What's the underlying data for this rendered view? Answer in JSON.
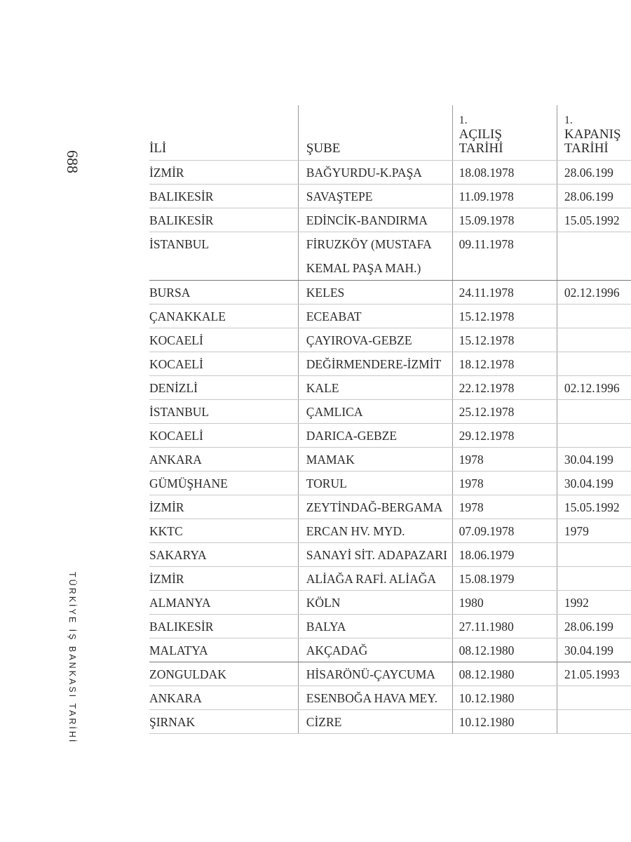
{
  "page_number": "688",
  "running_head": "TÜRKİYE İŞ BANKASI TARİHİ",
  "table": {
    "headers": [
      {
        "num": "",
        "label": "İLİ"
      },
      {
        "num": "",
        "label": "ŞUBE"
      },
      {
        "num": "1.",
        "label": "AÇILIŞ TARİHİ"
      },
      {
        "num": "1.",
        "label": "KAPANIŞ TARİHİ"
      }
    ],
    "rows": [
      [
        "İZMİR",
        "BAĞYURDU-K.PAŞA",
        "18.08.1978",
        "28.06.199"
      ],
      [
        "BALIKESİR",
        "SAVAŞTEPE",
        "11.09.1978",
        "28.06.199"
      ],
      [
        "BALIKESİR",
        "EDİNCİK-BANDIRMA",
        "15.09.1978",
        "15.05.1992"
      ],
      [
        "İSTANBUL",
        "FİRUZKÖY (MUSTAFA KEMAL PAŞA MAH.)",
        "09.11.1978",
        ""
      ],
      [
        "BURSA",
        "KELES",
        "24.11.1978",
        "02.12.1996"
      ],
      [
        "ÇANAKKALE",
        "ECEABAT",
        "15.12.1978",
        ""
      ],
      [
        "KOCAELİ",
        "ÇAYIROVA-GEBZE",
        "15.12.1978",
        ""
      ],
      [
        "KOCAELİ",
        "DEĞİRMENDERE-İZMİT",
        "18.12.1978",
        ""
      ],
      [
        "DENİZLİ",
        "KALE",
        "22.12.1978",
        "02.12.1996"
      ],
      [
        "İSTANBUL",
        "ÇAMLICA",
        "25.12.1978",
        ""
      ],
      [
        "KOCAELİ",
        "DARICA-GEBZE",
        "29.12.1978",
        ""
      ],
      [
        "ANKARA",
        "MAMAK",
        "1978",
        "30.04.199"
      ],
      [
        "GÜMÜŞHANE",
        "TORUL",
        "1978",
        "30.04.199"
      ],
      [
        "İZMİR",
        "ZEYTİNDAĞ-BERGAMA",
        "1978",
        "15.05.1992"
      ],
      [
        "KKTC",
        "ERCAN HV. MYD.",
        "07.09.1978",
        "1979"
      ],
      [
        "SAKARYA",
        "SANAYİ SİT. ADAPAZARI",
        "18.06.1979",
        ""
      ],
      [
        "İZMİR",
        "ALİAĞA RAFİ. ALİAĞA",
        "15.08.1979",
        ""
      ],
      [
        "ALMANYA",
        "KÖLN",
        "1980",
        "1992"
      ],
      [
        "BALIKESİR",
        "BALYA",
        "27.11.1980",
        "28.06.199"
      ],
      [
        "MALATYA",
        "AKÇADAĞ",
        "08.12.1980",
        "30.04.199"
      ],
      [
        "ZONGULDAK",
        "HİSARÖNÜ-ÇAYCUMA",
        "08.12.1980",
        "21.05.1993"
      ],
      [
        "ANKARA",
        "ESENBOĞA HAVA MEY.",
        "10.12.1980",
        ""
      ],
      [
        "ŞIRNAK",
        "CİZRE",
        "10.12.1980",
        ""
      ]
    ]
  }
}
